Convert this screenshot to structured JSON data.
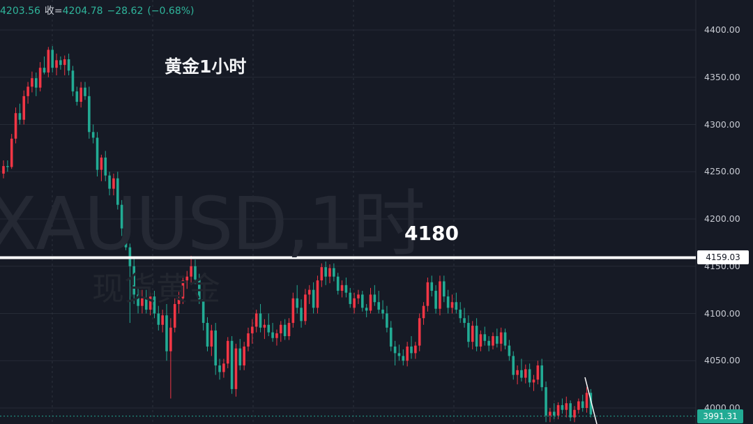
{
  "header": {
    "open_value": "4203.56",
    "close_label": "收=",
    "close_value": "4204.78",
    "change": "−28.62",
    "change_pct": "(−0.68%)"
  },
  "title": "黄金1小时",
  "watermark": {
    "symbol": "XAUUSD,1时",
    "name": "现货黄金"
  },
  "colors": {
    "background": "#161a25",
    "up": "#f23645",
    "down": "#22ab94",
    "grid": "#262b36",
    "axis_text": "#c8cbd3",
    "level_line": "#ffffff"
  },
  "chart_data": {
    "type": "candlestick",
    "y_axis": {
      "ticks": [
        4400,
        4350,
        4300,
        4250,
        4200,
        4150,
        4100,
        4050,
        4000
      ],
      "tick_labels": [
        "4400.00",
        "4350.00",
        "4300.00",
        "4250.00",
        "4200.00",
        "4150.00",
        "4100.00",
        "4050.00",
        "4000.00"
      ],
      "range": [
        3980,
        4425
      ]
    },
    "grid": true,
    "horizontal_level": {
      "price": 4159.03,
      "label": "4159.03",
      "annotation": "4180"
    },
    "last_price": {
      "value": 3991.31,
      "label": "3991.31"
    },
    "candles_ohlc": [
      [
        4248,
        4262,
        4243,
        4256
      ],
      [
        4256,
        4262,
        4250,
        4255
      ],
      [
        4255,
        4290,
        4253,
        4285
      ],
      [
        4285,
        4318,
        4280,
        4312
      ],
      [
        4312,
        4322,
        4300,
        4305
      ],
      [
        4305,
        4336,
        4300,
        4330
      ],
      [
        4330,
        4345,
        4322,
        4340
      ],
      [
        4340,
        4356,
        4334,
        4349
      ],
      [
        4349,
        4355,
        4330,
        4339
      ],
      [
        4339,
        4366,
        4335,
        4360
      ],
      [
        4360,
        4372,
        4353,
        4355
      ],
      [
        4355,
        4382,
        4350,
        4379
      ],
      [
        4379,
        4383,
        4355,
        4360
      ],
      [
        4360,
        4375,
        4352,
        4368
      ],
      [
        4368,
        4372,
        4358,
        4363
      ],
      [
        4363,
        4373,
        4352,
        4369
      ],
      [
        4369,
        4375,
        4352,
        4357
      ],
      [
        4357,
        4362,
        4330,
        4335
      ],
      [
        4335,
        4340,
        4320,
        4324
      ],
      [
        4324,
        4345,
        4318,
        4339
      ],
      [
        4339,
        4345,
        4326,
        4330
      ],
      [
        4330,
        4340,
        4285,
        4292
      ],
      [
        4292,
        4300,
        4280,
        4286
      ],
      [
        4286,
        4292,
        4245,
        4252
      ],
      [
        4252,
        4268,
        4240,
        4265
      ],
      [
        4265,
        4272,
        4240,
        4246
      ],
      [
        4246,
        4250,
        4225,
        4232
      ],
      [
        4232,
        4248,
        4225,
        4243
      ],
      [
        4243,
        4250,
        4210,
        4215
      ],
      [
        4215,
        4220,
        4182,
        4190
      ],
      [
        4190,
        4200,
        4167,
        4170
      ],
      [
        4170,
        4174,
        4090,
        4150
      ],
      [
        4150,
        4158,
        4110,
        4120
      ],
      [
        4120,
        4126,
        4100,
        4108
      ],
      [
        4108,
        4125,
        4100,
        4116
      ],
      [
        4116,
        4125,
        4100,
        4104
      ],
      [
        4104,
        4122,
        4098,
        4118
      ],
      [
        4118,
        4124,
        4095,
        4100
      ],
      [
        4100,
        4108,
        4082,
        4088
      ],
      [
        4088,
        4104,
        4080,
        4098
      ],
      [
        4098,
        4110,
        4050,
        4060
      ],
      [
        4060,
        4095,
        4010,
        4085
      ],
      [
        4085,
        4116,
        4080,
        4110
      ],
      [
        4110,
        4124,
        4100,
        4116
      ],
      [
        4116,
        4140,
        4110,
        4135
      ],
      [
        4135,
        4145,
        4126,
        4139
      ],
      [
        4139,
        4161,
        4130,
        4150
      ],
      [
        4150,
        4157,
        4131,
        4136
      ],
      [
        4136,
        4142,
        4110,
        4115
      ],
      [
        4115,
        4123,
        4082,
        4090
      ],
      [
        4090,
        4096,
        4060,
        4065
      ],
      [
        4065,
        4088,
        4055,
        4082
      ],
      [
        4082,
        4090,
        4035,
        4045
      ],
      [
        4045,
        4052,
        4030,
        4038
      ],
      [
        4038,
        4052,
        4032,
        4047
      ],
      [
        4047,
        4075,
        4042,
        4071
      ],
      [
        4071,
        4076,
        4015,
        4020
      ],
      [
        4020,
        4068,
        4012,
        4063
      ],
      [
        4063,
        4073,
        4040,
        4045
      ],
      [
        4045,
        4070,
        4040,
        4065
      ],
      [
        4065,
        4085,
        4060,
        4079
      ],
      [
        4079,
        4094,
        4068,
        4086
      ],
      [
        4086,
        4104,
        4080,
        4100
      ],
      [
        4100,
        4110,
        4080,
        4085
      ],
      [
        4085,
        4094,
        4073,
        4088
      ],
      [
        4088,
        4100,
        4076,
        4080
      ],
      [
        4080,
        4090,
        4070,
        4074
      ],
      [
        4074,
        4083,
        4066,
        4079
      ],
      [
        4079,
        4092,
        4070,
        4088
      ],
      [
        4088,
        4094,
        4072,
        4076
      ],
      [
        4076,
        4095,
        4072,
        4090
      ],
      [
        4090,
        4122,
        4085,
        4116
      ],
      [
        4116,
        4130,
        4100,
        4106
      ],
      [
        4106,
        4115,
        4085,
        4092
      ],
      [
        4092,
        4126,
        4088,
        4120
      ],
      [
        4120,
        4130,
        4110,
        4125
      ],
      [
        4125,
        4133,
        4100,
        4106
      ],
      [
        4106,
        4140,
        4100,
        4135
      ],
      [
        4135,
        4153,
        4128,
        4149
      ],
      [
        4149,
        4155,
        4130,
        4139
      ],
      [
        4139,
        4152,
        4132,
        4148
      ],
      [
        4148,
        4153,
        4134,
        4139
      ],
      [
        4139,
        4143,
        4120,
        4124
      ],
      [
        4124,
        4135,
        4117,
        4130
      ],
      [
        4130,
        4138,
        4117,
        4122
      ],
      [
        4122,
        4127,
        4106,
        4110
      ],
      [
        4106,
        4122,
        4100,
        4116
      ],
      [
        4116,
        4125,
        4110,
        4120
      ],
      [
        4120,
        4124,
        4102,
        4106
      ],
      [
        4106,
        4110,
        4096,
        4103
      ],
      [
        4103,
        4127,
        4100,
        4120
      ],
      [
        4120,
        4130,
        4108,
        4112
      ],
      [
        4112,
        4124,
        4100,
        4104
      ],
      [
        4104,
        4114,
        4094,
        4100
      ],
      [
        4100,
        4108,
        4080,
        4085
      ],
      [
        4085,
        4092,
        4060,
        4065
      ],
      [
        4065,
        4071,
        4045,
        4058
      ],
      [
        4058,
        4067,
        4050,
        4055
      ],
      [
        4055,
        4062,
        4045,
        4050
      ],
      [
        4050,
        4070,
        4044,
        4065
      ],
      [
        4065,
        4076,
        4052,
        4058
      ],
      [
        4058,
        4070,
        4052,
        4066
      ],
      [
        4066,
        4100,
        4060,
        4095
      ],
      [
        4095,
        4112,
        4088,
        4108
      ],
      [
        4108,
        4138,
        4102,
        4133
      ],
      [
        4133,
        4140,
        4118,
        4124
      ],
      [
        4124,
        4130,
        4100,
        4105
      ],
      [
        4105,
        4140,
        4098,
        4134
      ],
      [
        4134,
        4140,
        4112,
        4118
      ],
      [
        4118,
        4125,
        4100,
        4106
      ],
      [
        4106,
        4120,
        4100,
        4112
      ],
      [
        4112,
        4122,
        4100,
        4104
      ],
      [
        4104,
        4112,
        4090,
        4095
      ],
      [
        4095,
        4106,
        4085,
        4090
      ],
      [
        4090,
        4098,
        4064,
        4070
      ],
      [
        4070,
        4092,
        4062,
        4087
      ],
      [
        4087,
        4095,
        4060,
        4065
      ],
      [
        4065,
        4082,
        4060,
        4078
      ],
      [
        4078,
        4086,
        4066,
        4071
      ],
      [
        4071,
        4076,
        4060,
        4066
      ],
      [
        4066,
        4080,
        4062,
        4076
      ],
      [
        4076,
        4084,
        4064,
        4068
      ],
      [
        4068,
        4085,
        4060,
        4080
      ],
      [
        4080,
        4084,
        4062,
        4066
      ],
      [
        4066,
        4072,
        4050,
        4055
      ],
      [
        4055,
        4060,
        4030,
        4035
      ],
      [
        4035,
        4045,
        4025,
        4040
      ],
      [
        4040,
        4052,
        4028,
        4032
      ],
      [
        4032,
        4046,
        4026,
        4041
      ],
      [
        4041,
        4047,
        4022,
        4027
      ],
      [
        4027,
        4035,
        4018,
        4030
      ],
      [
        4030,
        4050,
        4025,
        4045
      ],
      [
        4045,
        4052,
        4018,
        4022
      ],
      [
        4022,
        4028,
        3985,
        3992
      ],
      [
        3992,
        4000,
        3985,
        3996
      ],
      [
        3996,
        4005,
        3988,
        3992
      ],
      [
        3992,
        4006,
        3988,
        4003
      ],
      [
        4003,
        4010,
        3994,
        3998
      ],
      [
        3998,
        4012,
        3990,
        4005
      ],
      [
        4005,
        4008,
        3986,
        3990
      ],
      [
        3990,
        4002,
        3985,
        3998
      ],
      [
        3998,
        4010,
        3994,
        4007
      ],
      [
        4007,
        4014,
        3996,
        4000
      ],
      [
        4000,
        4022,
        3995,
        4016
      ],
      [
        4016,
        4020,
        3990,
        3993
      ]
    ],
    "trend_line": {
      "from": [
        839,
        541
      ],
      "to": [
        856,
        608
      ]
    }
  }
}
